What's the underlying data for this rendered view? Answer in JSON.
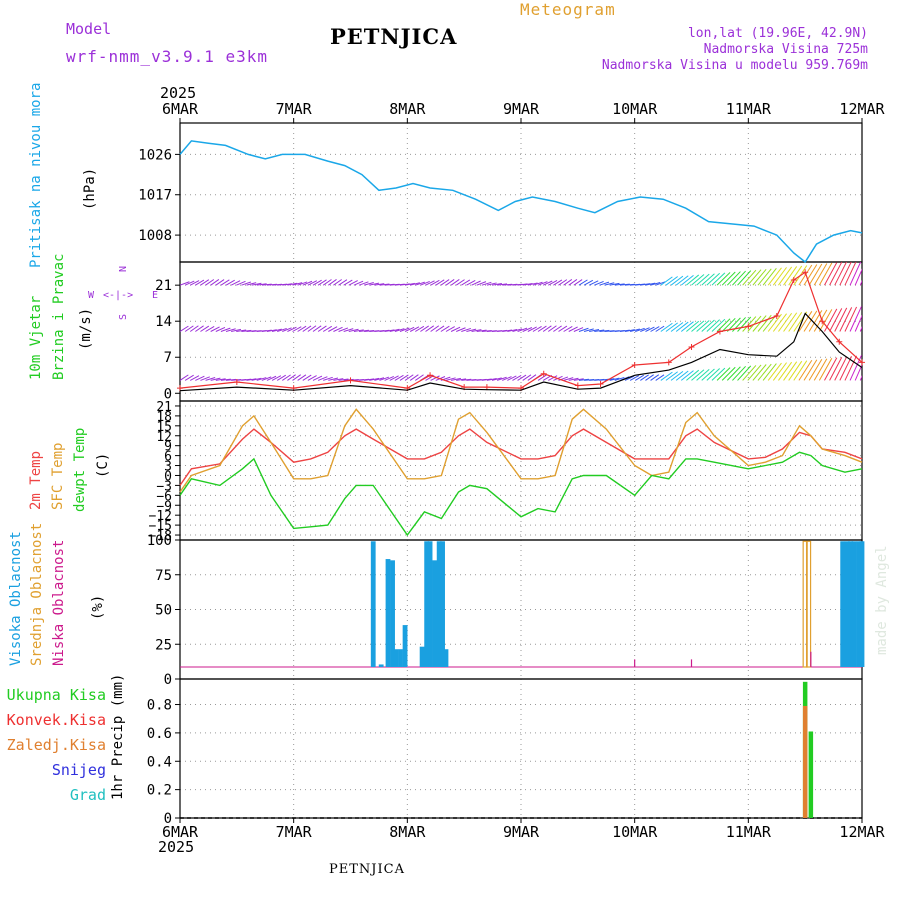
{
  "header": {
    "model_label": "Model",
    "model_name": "wrf-nmm_v3.9.1 e3km",
    "station": "PETNJICA",
    "product": "Meteogram",
    "lonlat": "lon,lat (19.96E, 42.9N)",
    "altitude": "Nadmorska Visina 725m",
    "model_altitude": "Nadmorska Visina u modelu 959.769m",
    "footer_station": "PETNJICA",
    "watermark": "made by Angel"
  },
  "colors": {
    "pressure": "#1aa7e8",
    "wind_purple": "#9b30d8",
    "speed_black": "#000000",
    "gust_red": "#ee3030",
    "temp2m": "#ee4444",
    "sfc_temp": "#e0a030",
    "dewpoint": "#22cc22",
    "high_cloud": "#1aa0e0",
    "mid_cloud": "#e0a030",
    "low_cloud": "#cc1a8c",
    "total_precip": "#22cc22",
    "conv_precip": "#ee3030",
    "frozen_precip": "#e08030",
    "snow": "#3030dd",
    "hail": "#20c0c0"
  },
  "x_axis": {
    "year": "2025",
    "labels": [
      "6MAR",
      "7MAR",
      "8MAR",
      "9MAR",
      "10MAR",
      "11MAR",
      "12MAR"
    ]
  },
  "panel_labels": {
    "pressure": [
      "Pritisak na nivou mora",
      "(hPa)"
    ],
    "wind": [
      "10m Vjetar",
      "Brzina i Pravac",
      "(m/s)"
    ],
    "wind_compass": {
      "n": "N",
      "s": "S",
      "w": "W",
      "e": "E",
      "arrows": "<-|->"
    },
    "temp": [
      "2m Temp",
      "SFC Temp",
      "dewpt Temp",
      "(C)"
    ],
    "cloud": [
      "Visoka Oblacnost",
      "Srednja Oblacnost",
      "Niska Oblacnost",
      "(%)"
    ],
    "precip_axis": "1hr Precip (mm)",
    "precip_legend": [
      "Ukupna Kisa",
      "Konvek.Kisa",
      "Zaledj.Kisa",
      "Snijeg",
      "Grad"
    ]
  },
  "chart_data": [
    {
      "type": "line",
      "name": "pressure",
      "title": "Pritisak na nivou mora",
      "ylabel": "(hPa)",
      "ylim": [
        1002,
        1033
      ],
      "yticks": [
        1008,
        1017,
        1026
      ],
      "x_days": [
        0,
        0.1,
        0.25,
        0.4,
        0.6,
        0.75,
        0.9,
        1.1,
        1.3,
        1.45,
        1.6,
        1.75,
        1.9,
        2.05,
        2.2,
        2.4,
        2.6,
        2.8,
        2.95,
        3.1,
        3.3,
        3.5,
        3.65,
        3.85,
        4.05,
        4.25,
        4.45,
        4.65,
        4.85,
        5.05,
        5.25,
        5.4,
        5.5,
        5.6,
        5.75,
        5.9,
        6.0
      ],
      "series": [
        {
          "name": "pressure",
          "values": [
            1026,
            1029,
            1028.5,
            1028,
            1026,
            1025,
            1026,
            1026,
            1024.5,
            1023.5,
            1021.5,
            1018,
            1018.5,
            1019.5,
            1018.5,
            1018,
            1016,
            1013.5,
            1015.5,
            1016.5,
            1015.5,
            1014,
            1013,
            1015.5,
            1016.5,
            1016,
            1014,
            1011,
            1010.5,
            1010,
            1008,
            1004,
            1002,
            1006,
            1008,
            1009,
            1008.5
          ]
        }
      ]
    },
    {
      "type": "line",
      "name": "wind",
      "title": "10m Vjetar Brzina i Pravac",
      "ylabel": "(m/s)",
      "ylim": [
        -1.5,
        25.5
      ],
      "yticks": [
        0,
        7,
        14,
        21
      ],
      "barb_rows_ms": [
        21,
        12,
        2.5
      ],
      "x_days": [
        0,
        0.5,
        1.0,
        1.5,
        2.0,
        2.2,
        2.5,
        2.7,
        3.0,
        3.2,
        3.5,
        3.7,
        4.0,
        4.3,
        4.5,
        4.75,
        5.0,
        5.25,
        5.4,
        5.5,
        5.65,
        5.8,
        6.0
      ],
      "series": [
        {
          "name": "speed",
          "values": [
            0.5,
            1.2,
            0.6,
            1.5,
            0.6,
            2,
            0.8,
            0.7,
            0.6,
            2.2,
            0.8,
            1,
            3.5,
            4.5,
            6,
            8.5,
            7.5,
            7.2,
            10,
            15.5,
            12,
            8,
            5
          ]
        },
        {
          "name": "gust",
          "values": [
            1,
            2.2,
            1,
            2.5,
            1,
            3.5,
            1.2,
            1.2,
            1,
            3.8,
            1.5,
            1.8,
            5.5,
            6,
            9,
            12,
            13,
            15,
            22,
            23.5,
            14,
            10,
            6
          ]
        }
      ]
    },
    {
      "type": "line",
      "name": "temperature",
      "title": "2m Temp / SFC Temp / dewpt Temp",
      "ylabel": "(C)",
      "ylim": [
        -19.5,
        22.5
      ],
      "yticks": [
        -18,
        -15,
        -12,
        -9,
        -6,
        -3,
        0,
        3,
        6,
        9,
        12,
        15,
        18,
        21
      ],
      "x_days": [
        0,
        0.1,
        0.35,
        0.55,
        0.65,
        0.8,
        1.0,
        1.15,
        1.3,
        1.45,
        1.55,
        1.7,
        2.0,
        2.15,
        2.3,
        2.45,
        2.55,
        2.7,
        3.0,
        3.15,
        3.3,
        3.45,
        3.55,
        3.75,
        4.0,
        4.15,
        4.3,
        4.45,
        4.55,
        4.7,
        5.0,
        5.15,
        5.3,
        5.45,
        5.55,
        5.65,
        5.85,
        6.0
      ],
      "series": [
        {
          "name": "2m_temp",
          "values": [
            -3,
            2,
            3.5,
            11,
            14,
            10,
            4,
            5,
            7,
            12,
            14,
            11,
            5,
            5,
            7,
            12,
            14,
            10,
            5,
            5,
            6,
            12,
            14,
            10,
            5,
            5,
            5,
            12,
            14,
            10,
            5,
            5.5,
            8,
            13,
            12,
            8,
            7,
            5
          ]
        },
        {
          "name": "sfc_temp",
          "values": [
            -5,
            0,
            3,
            15,
            18,
            10,
            -1,
            -1,
            0,
            15,
            20,
            14,
            -1,
            -1,
            0,
            17,
            19,
            13,
            -1,
            -1,
            0,
            17,
            20,
            14,
            3,
            0,
            1,
            16,
            19,
            12,
            3,
            4,
            6,
            15,
            12,
            8,
            6,
            4
          ]
        },
        {
          "name": "dewpoint",
          "values": [
            -6,
            -1,
            -3,
            2,
            5,
            -6,
            -16,
            -15.5,
            -15,
            -7,
            -3,
            -3,
            -18,
            -11,
            -13,
            -5,
            -3,
            -4,
            -12.5,
            -10,
            -11,
            -1,
            0,
            0,
            -6,
            0,
            -1,
            5,
            5,
            4,
            2,
            3,
            4,
            7,
            6,
            3,
            1,
            2
          ]
        }
      ]
    },
    {
      "type": "bar",
      "name": "cloud",
      "title": "Visoka / Srednja / Niska Oblacnost",
      "ylabel": "(%)",
      "ylim": [
        0,
        100
      ],
      "yticks": [
        0,
        25,
        50,
        75,
        100
      ],
      "series": [
        {
          "name": "high",
          "x_days": [
            1.7,
            1.77,
            1.83,
            1.87,
            1.9,
            1.94,
            1.98,
            2.13,
            2.17,
            2.2,
            2.24,
            2.28,
            2.31,
            2.34,
            5.83,
            5.87,
            5.9,
            5.93,
            5.97,
            6.0
          ],
          "values": [
            99,
            2,
            85,
            84,
            14,
            14,
            33,
            16,
            99,
            99,
            84,
            99,
            99,
            14,
            99,
            99,
            99,
            99,
            99,
            99
          ]
        },
        {
          "name": "mid",
          "x_days": [
            5.5,
            5.53
          ],
          "values": [
            99,
            99
          ]
        },
        {
          "name": "low",
          "x_days": [
            4.0,
            4.5,
            5.55
          ],
          "values": [
            6,
            6,
            12
          ]
        }
      ]
    },
    {
      "type": "bar",
      "name": "precip",
      "title": "1hr Precip (mm)",
      "ylabel": "1hr Precip (mm)",
      "ylim": [
        0,
        0.98
      ],
      "yticks": [
        0,
        0.2,
        0.4,
        0.6,
        0.8
      ],
      "series": [
        {
          "name": "total",
          "x_days": [
            5.5,
            5.55
          ],
          "values": [
            0.96,
            0.61
          ]
        },
        {
          "name": "convective",
          "x_days": [
            5.5
          ],
          "values": [
            0.79
          ]
        }
      ]
    }
  ]
}
